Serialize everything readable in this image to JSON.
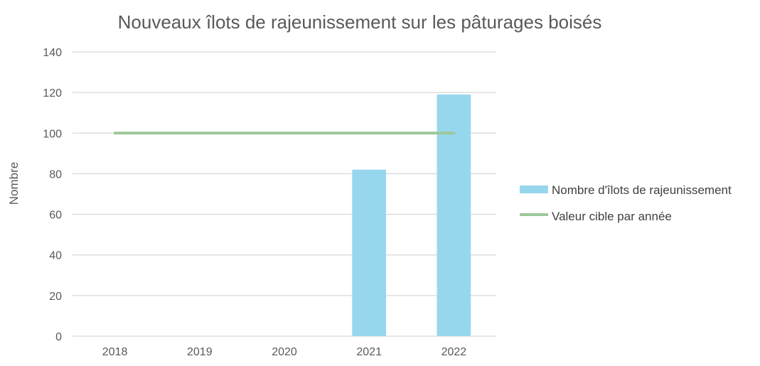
{
  "chart_data": {
    "type": "bar",
    "title": "Nouveaux îlots de rajeunissement sur les pâturages boisés",
    "xlabel": "",
    "ylabel": "Nombre",
    "categories": [
      "2018",
      "2019",
      "2020",
      "2021",
      "2022"
    ],
    "ylim": [
      0,
      140
    ],
    "yticks": [
      0,
      20,
      40,
      60,
      80,
      100,
      120,
      140
    ],
    "grid": true,
    "legend_position": "right",
    "series": [
      {
        "name": "Nombre d'îlots de rajeunissement",
        "type": "bar",
        "color": "#97d7ee",
        "values": [
          0,
          0,
          0,
          82,
          119
        ]
      },
      {
        "name": "Valeur cible par année",
        "type": "line",
        "color": "#9dc89a",
        "values": [
          100,
          100,
          100,
          100,
          100
        ]
      }
    ]
  }
}
